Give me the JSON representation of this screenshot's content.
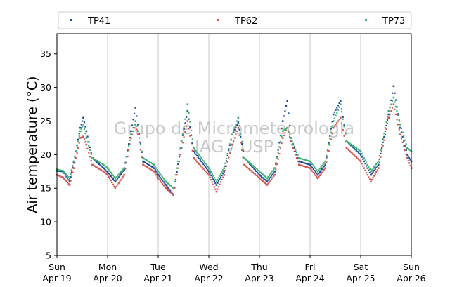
{
  "chart_data": {
    "type": "scatter",
    "ylabel": "Air temperature (°C)",
    "ylim": [
      5,
      38
    ],
    "yticks": [
      5,
      10,
      15,
      20,
      25,
      30,
      35
    ],
    "xlim_days": [
      0,
      7
    ],
    "x_ticks": [
      {
        "day": "Sun",
        "date": "Apr-19"
      },
      {
        "day": "Mon",
        "date": "Apr-20"
      },
      {
        "day": "Tue",
        "date": "Apr-21"
      },
      {
        "day": "Wed",
        "date": "Apr-22"
      },
      {
        "day": "Thu",
        "date": "Apr-23"
      },
      {
        "day": "Fri",
        "date": "Apr-24"
      },
      {
        "day": "Sat",
        "date": "Apr-25"
      },
      {
        "day": "Sun",
        "date": "Apr-26"
      }
    ],
    "grid": "vertical",
    "legend_position": "top",
    "watermark": [
      "Grupo de Micrometeorologia",
      "IAG / USP"
    ],
    "series": [
      {
        "name": "TP41",
        "color": "#1f4e99",
        "points": [
          [
            0.0,
            17.6
          ],
          [
            0.12,
            17.5
          ],
          [
            0.25,
            16.0
          ],
          [
            0.33,
            18.8
          ],
          [
            0.46,
            24.0
          ],
          [
            0.52,
            25.5
          ],
          [
            0.58,
            23.5
          ],
          [
            0.7,
            19.5
          ],
          [
            0.92,
            18.0
          ],
          [
            1.0,
            17.4
          ],
          [
            1.15,
            16.0
          ],
          [
            1.33,
            17.8
          ],
          [
            1.46,
            23.5
          ],
          [
            1.55,
            27.0
          ],
          [
            1.6,
            24.5
          ],
          [
            1.7,
            19.0
          ],
          [
            1.92,
            18.0
          ],
          [
            2.0,
            17.0
          ],
          [
            2.15,
            15.5
          ],
          [
            2.3,
            14.0
          ],
          [
            2.46,
            22.0
          ],
          [
            2.58,
            26.5
          ],
          [
            2.7,
            20.5
          ],
          [
            3.0,
            17.5
          ],
          [
            3.15,
            15.5
          ],
          [
            3.3,
            17.5
          ],
          [
            3.46,
            23.0
          ],
          [
            3.58,
            24.8
          ],
          [
            3.7,
            19.5
          ],
          [
            4.0,
            17.0
          ],
          [
            4.15,
            16.0
          ],
          [
            4.3,
            17.5
          ],
          [
            4.46,
            25.0
          ],
          [
            4.55,
            28.0
          ],
          [
            4.62,
            22.5
          ],
          [
            4.78,
            19.0
          ],
          [
            5.0,
            18.5
          ],
          [
            5.15,
            17.0
          ],
          [
            5.3,
            18.5
          ],
          [
            5.46,
            26.0
          ],
          [
            5.6,
            28.0
          ],
          [
            5.72,
            22.0
          ],
          [
            6.0,
            20.0
          ],
          [
            6.2,
            17.0
          ],
          [
            6.35,
            18.5
          ],
          [
            6.55,
            26.0
          ],
          [
            6.65,
            30.2
          ],
          [
            6.78,
            24.0
          ],
          [
            6.92,
            20.0
          ],
          [
            7.0,
            19.0
          ]
        ]
      },
      {
        "name": "TP62",
        "color": "#d9534f",
        "points": [
          [
            0.0,
            17.0
          ],
          [
            0.12,
            16.6
          ],
          [
            0.25,
            15.5
          ],
          [
            0.33,
            18.0
          ],
          [
            0.46,
            22.5
          ],
          [
            0.52,
            22.7
          ],
          [
            0.58,
            21.5
          ],
          [
            0.7,
            18.5
          ],
          [
            0.92,
            17.5
          ],
          [
            1.0,
            17.0
          ],
          [
            1.15,
            15.0
          ],
          [
            1.33,
            17.0
          ],
          [
            1.46,
            22.5
          ],
          [
            1.55,
            24.5
          ],
          [
            1.6,
            23.0
          ],
          [
            1.7,
            18.5
          ],
          [
            1.92,
            17.5
          ],
          [
            2.0,
            16.5
          ],
          [
            2.15,
            15.0
          ],
          [
            2.3,
            14.0
          ],
          [
            2.46,
            21.0
          ],
          [
            2.58,
            25.0
          ],
          [
            2.7,
            19.5
          ],
          [
            3.0,
            17.0
          ],
          [
            3.15,
            14.5
          ],
          [
            3.3,
            17.0
          ],
          [
            3.46,
            21.5
          ],
          [
            3.58,
            24.0
          ],
          [
            3.7,
            18.5
          ],
          [
            4.0,
            16.5
          ],
          [
            4.15,
            15.5
          ],
          [
            4.3,
            17.0
          ],
          [
            4.46,
            22.5
          ],
          [
            4.55,
            24.0
          ],
          [
            4.62,
            22.0
          ],
          [
            4.78,
            18.5
          ],
          [
            5.0,
            18.0
          ],
          [
            5.15,
            16.5
          ],
          [
            5.3,
            18.0
          ],
          [
            5.46,
            24.0
          ],
          [
            5.6,
            25.5
          ],
          [
            5.72,
            21.0
          ],
          [
            6.0,
            19.0
          ],
          [
            6.2,
            16.0
          ],
          [
            6.35,
            18.0
          ],
          [
            6.55,
            25.5
          ],
          [
            6.65,
            27.5
          ],
          [
            6.78,
            23.0
          ],
          [
            6.92,
            19.5
          ],
          [
            7.0,
            18.0
          ]
        ]
      },
      {
        "name": "TP73",
        "color": "#3cb371",
        "points": [
          [
            0.0,
            17.8
          ],
          [
            0.12,
            17.6
          ],
          [
            0.25,
            16.5
          ],
          [
            0.33,
            19.0
          ],
          [
            0.46,
            23.5
          ],
          [
            0.52,
            24.5
          ],
          [
            0.58,
            22.5
          ],
          [
            0.7,
            19.5
          ],
          [
            0.92,
            18.5
          ],
          [
            1.0,
            18.0
          ],
          [
            1.15,
            16.5
          ],
          [
            1.33,
            18.0
          ],
          [
            1.46,
            23.0
          ],
          [
            1.55,
            25.0
          ],
          [
            1.6,
            23.5
          ],
          [
            1.7,
            19.5
          ],
          [
            1.92,
            18.5
          ],
          [
            2.0,
            17.5
          ],
          [
            2.15,
            16.0
          ],
          [
            2.3,
            15.0
          ],
          [
            2.46,
            22.0
          ],
          [
            2.58,
            27.5
          ],
          [
            2.7,
            21.0
          ],
          [
            3.0,
            18.0
          ],
          [
            3.15,
            16.0
          ],
          [
            3.3,
            18.0
          ],
          [
            3.46,
            23.0
          ],
          [
            3.58,
            25.5
          ],
          [
            3.7,
            19.5
          ],
          [
            4.0,
            17.5
          ],
          [
            4.15,
            16.5
          ],
          [
            4.3,
            18.0
          ],
          [
            4.46,
            23.5
          ],
          [
            4.55,
            24.0
          ],
          [
            4.62,
            22.5
          ],
          [
            4.78,
            19.5
          ],
          [
            5.0,
            19.0
          ],
          [
            5.15,
            17.5
          ],
          [
            5.3,
            19.0
          ],
          [
            5.46,
            25.0
          ],
          [
            5.6,
            27.5
          ],
          [
            5.72,
            22.0
          ],
          [
            6.0,
            20.5
          ],
          [
            6.2,
            17.5
          ],
          [
            6.35,
            19.0
          ],
          [
            6.55,
            26.5
          ],
          [
            6.65,
            28.5
          ],
          [
            6.78,
            24.5
          ],
          [
            6.92,
            21.0
          ],
          [
            7.0,
            20.5
          ]
        ]
      }
    ]
  }
}
